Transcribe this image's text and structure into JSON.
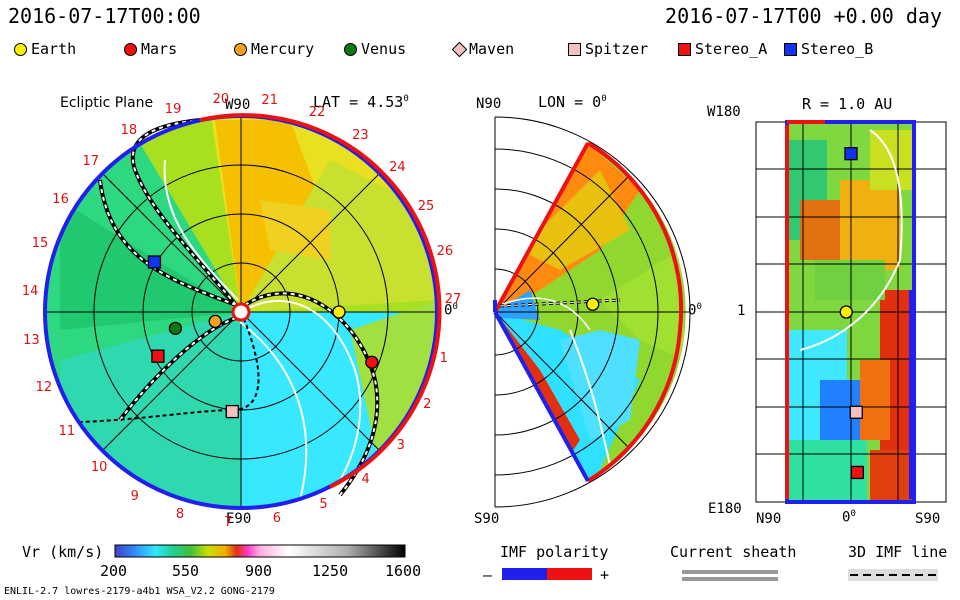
{
  "header": {
    "datetime_left": "2016-07-17T00:00",
    "datetime_right": "2016-07-17T00 +0.00 day"
  },
  "legend": [
    {
      "name": "Earth",
      "color": "#ffee00",
      "shape": "circle"
    },
    {
      "name": "Mars",
      "color": "#ee1111",
      "shape": "circle"
    },
    {
      "name": "Mercury",
      "color": "#f5a020",
      "shape": "circle"
    },
    {
      "name": "Venus",
      "color": "#117711",
      "shape": "circle"
    },
    {
      "name": "Maven",
      "color": "#f4c0c0",
      "shape": "diamond"
    },
    {
      "name": "Spitzer",
      "color": "#f4c0c0",
      "shape": "square"
    },
    {
      "name": "Stereo_A",
      "color": "#ee1111",
      "shape": "square"
    },
    {
      "name": "Stereo_B",
      "color": "#1133ee",
      "shape": "square"
    }
  ],
  "chart_data": [
    {
      "type": "heatmap",
      "title": "Ecliptic Plane",
      "subtitle": "LAT = 4.53",
      "subtitle_sup": "0",
      "axis_labels": {
        "top": "W90",
        "bottom": "E90",
        "right": "0",
        "right_sup": "0"
      },
      "carrington_labels": [
        "1",
        "2",
        "3",
        "4",
        "5",
        "6",
        "7",
        "8",
        "9",
        "10",
        "11",
        "12",
        "13",
        "14",
        "15",
        "16",
        "17",
        "18",
        "19",
        "20",
        "21",
        "22",
        "23",
        "24",
        "25",
        "26",
        "27"
      ],
      "planets": [
        {
          "name": "Earth",
          "angle_deg": 0,
          "r_au": 1.0
        },
        {
          "name": "Mercury",
          "angle_deg": -160,
          "r_au": 0.28
        },
        {
          "name": "Venus",
          "angle_deg": -166,
          "r_au": 0.69
        },
        {
          "name": "Mars",
          "angle_deg": -21,
          "r_au": 1.43
        },
        {
          "name": "Stereo_B",
          "angle_deg": 150,
          "r_au": 1.02
        },
        {
          "name": "Stereo_A",
          "angle_deg": -152,
          "r_au": 0.96
        },
        {
          "name": "Spitzer",
          "angle_deg": -95,
          "r_au": 1.02
        }
      ]
    },
    {
      "type": "heatmap",
      "title": "LON = 0",
      "title_sup": "0",
      "axis_labels": {
        "top": "N90",
        "bottom": "S90",
        "right": "0",
        "right_sup": "0"
      },
      "planets": [
        {
          "name": "Earth",
          "lat_deg": 4.53,
          "r_au": 1.0
        }
      ]
    },
    {
      "type": "heatmap",
      "title": "R = 1.0 AU",
      "axis_labels": {
        "top_left": "W180",
        "middle_left": "1",
        "bottom_left": "E180",
        "bottom_left2": "N90",
        "bottom_mid": "0",
        "bottom_mid_sup": "0",
        "bottom_right": "S90"
      },
      "planets": [
        {
          "name": "Stereo_B",
          "lon_deg": 150,
          "lat_deg": 0
        },
        {
          "name": "Earth",
          "lon_deg": 0,
          "lat_deg": 4.53
        },
        {
          "name": "Spitzer",
          "lon_deg": -95,
          "lat_deg": -5
        },
        {
          "name": "Stereo_A",
          "lon_deg": -152,
          "lat_deg": -6
        }
      ]
    }
  ],
  "colorbar": {
    "label": "Vr (km/s)",
    "ticks": [
      "200",
      "550",
      "900",
      "1250",
      "1600"
    ],
    "range": [
      200,
      1600
    ]
  },
  "imf": {
    "label": "IMF polarity",
    "minus": "–",
    "plus": "+"
  },
  "sheath": {
    "label": "Current sheath"
  },
  "imf3d": {
    "label": "3D IMF line"
  },
  "footer": {
    "text": "ENLIL-2.7 lowres-2179-a4b1 WSA_V2.2 GONG-2179"
  }
}
